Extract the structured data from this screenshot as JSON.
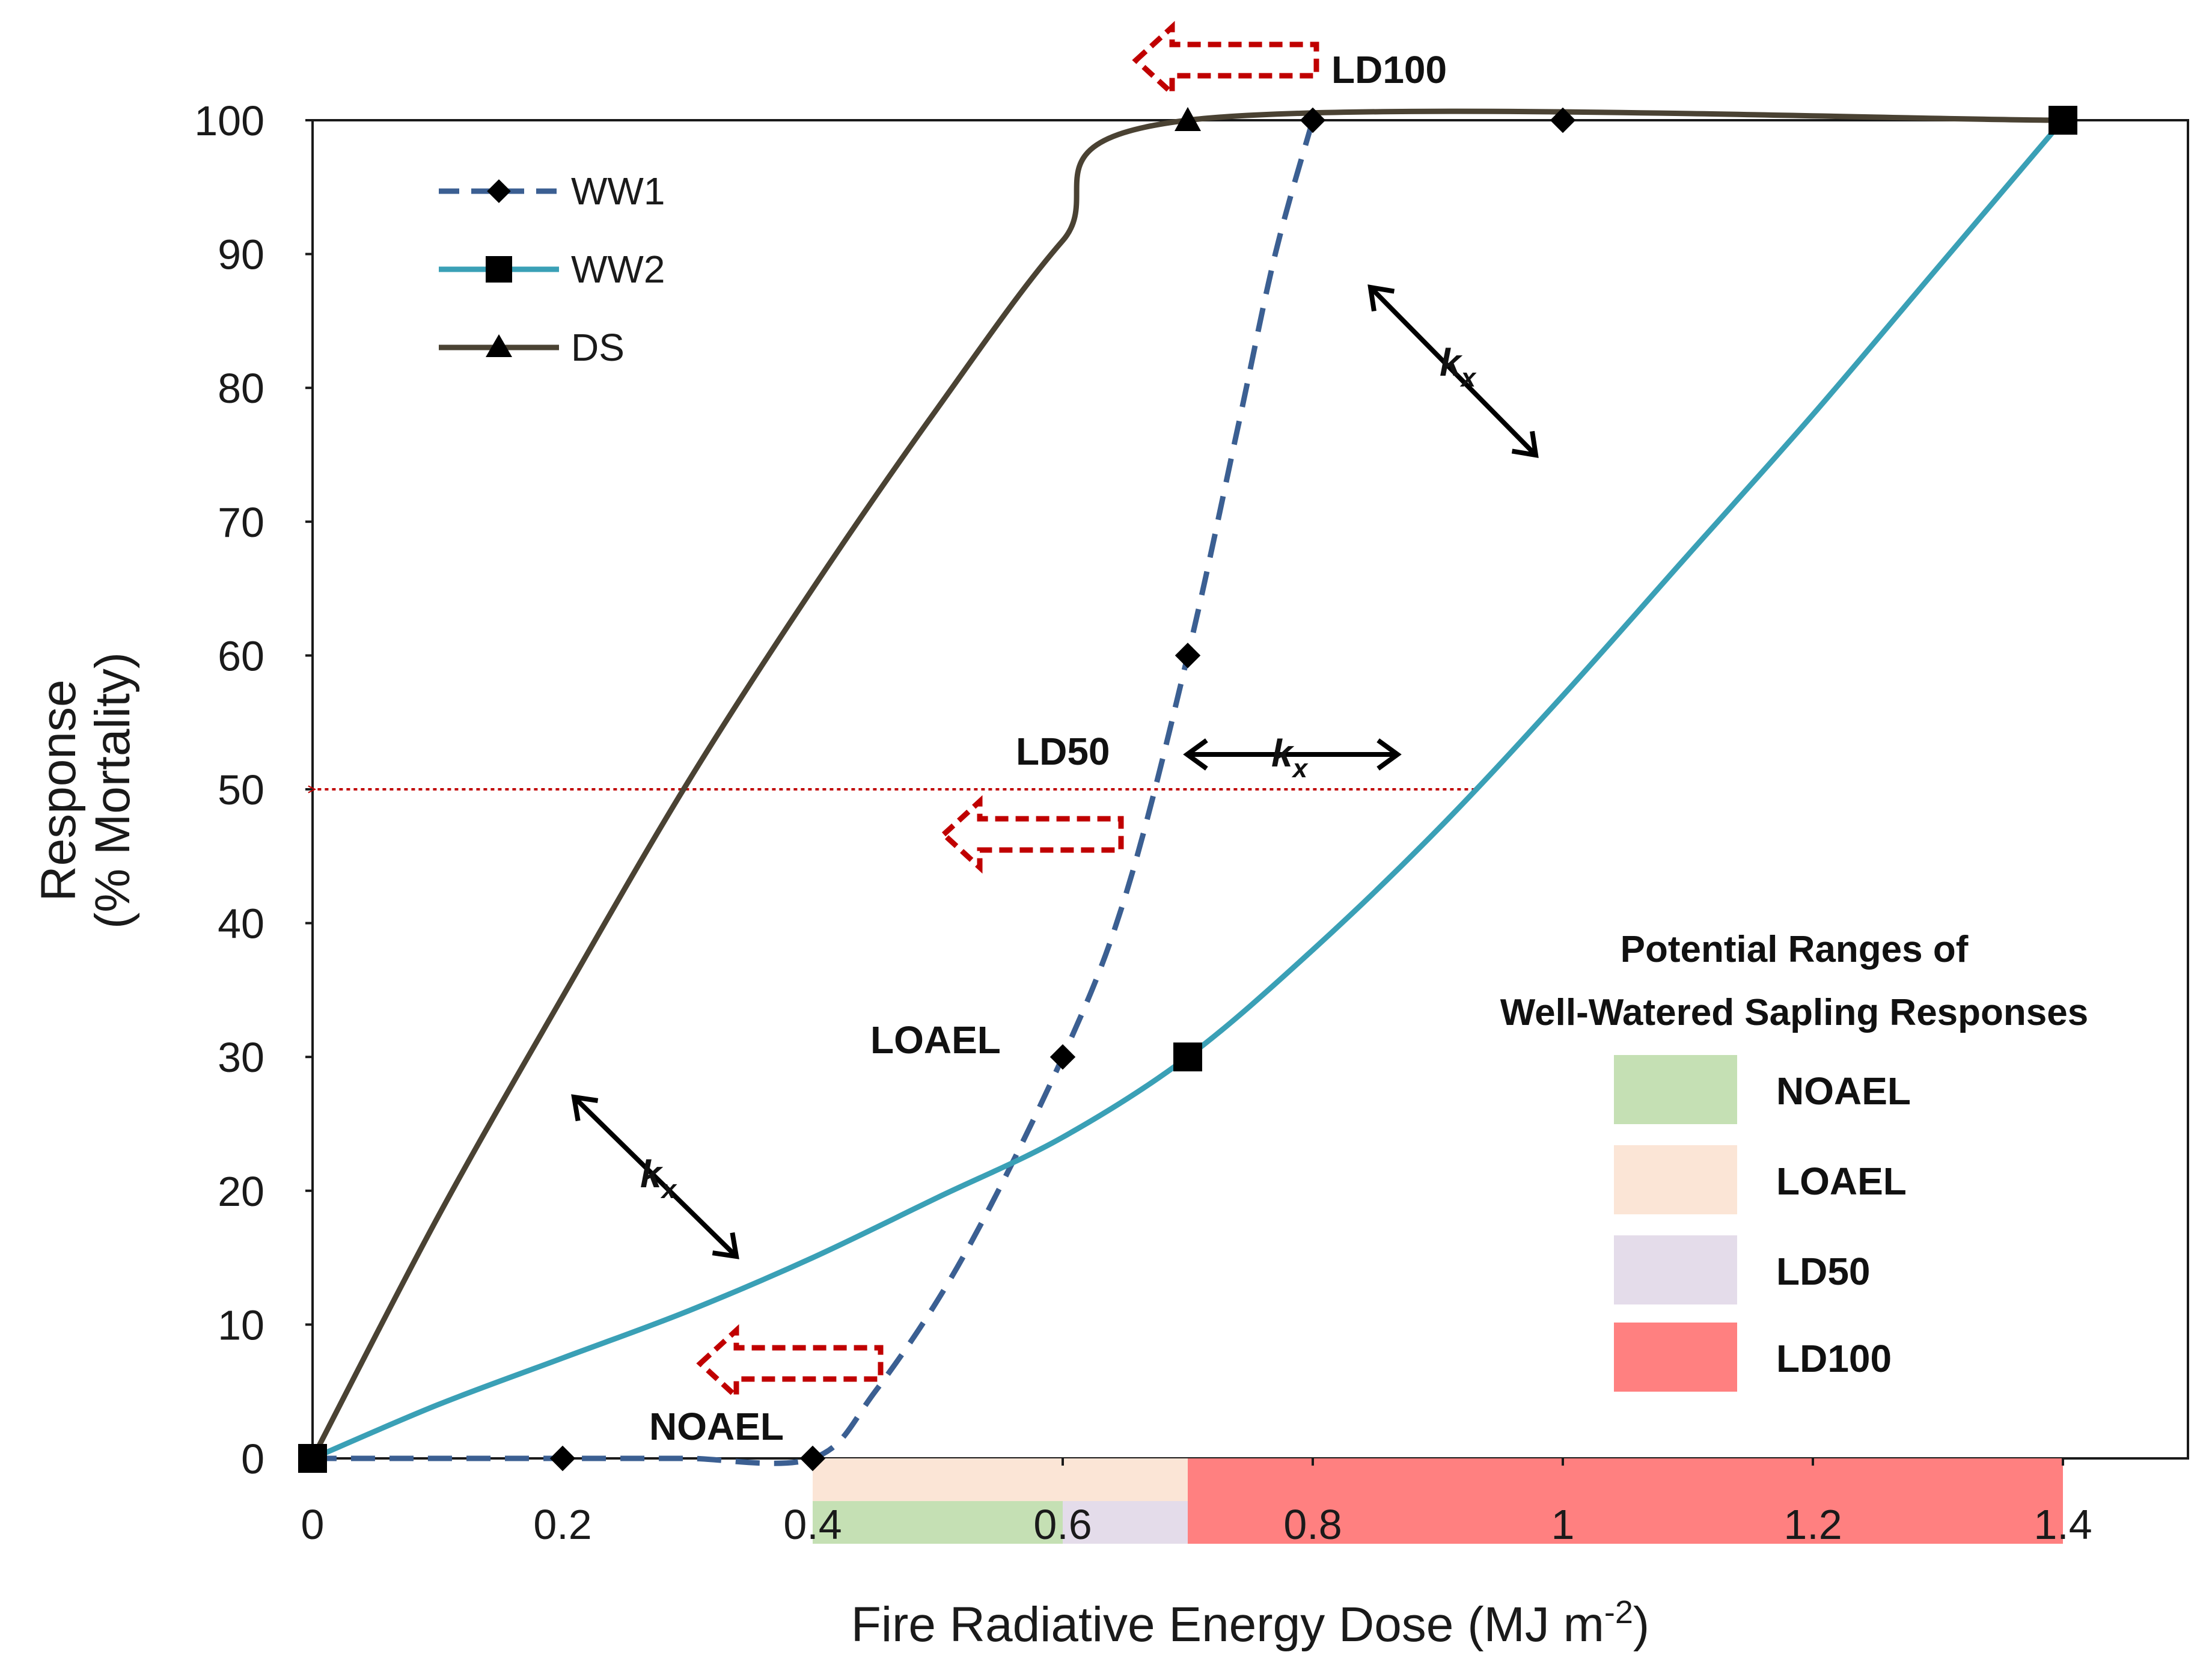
{
  "chart_data": {
    "type": "line",
    "xlabel": "Fire Radiative Energy Dose (MJ m",
    "xlabel_sup": "-2",
    "xlabel_end": ")",
    "ylabel_line1": "Response",
    "ylabel_line2": "(% Mortality)",
    "xlim": [
      0,
      1.5
    ],
    "ylim": [
      0,
      100
    ],
    "x_ticks": [
      "0",
      "0.2",
      "0.4",
      "0.6",
      "0.8",
      "1",
      "1.2",
      "1.4"
    ],
    "y_ticks": [
      "0",
      "10",
      "20",
      "30",
      "40",
      "50",
      "60",
      "70",
      "80",
      "90",
      "100"
    ],
    "series": [
      {
        "name": "WW1",
        "color": "#3b5f92",
        "style": "dashed",
        "marker": "diamond",
        "points": [
          [
            0,
            0
          ],
          [
            0.2,
            0
          ],
          [
            0.4,
            0
          ],
          [
            0.6,
            30
          ],
          [
            0.7,
            60
          ],
          [
            0.8,
            100
          ],
          [
            1.0,
            100
          ]
        ],
        "curve": [
          [
            0,
            0
          ],
          [
            0.24,
            0
          ],
          [
            0.3,
            0
          ],
          [
            0.4,
            0
          ],
          [
            0.45,
            5
          ],
          [
            0.52,
            15
          ],
          [
            0.6,
            30
          ],
          [
            0.65,
            42
          ],
          [
            0.7,
            60
          ],
          [
            0.74,
            77
          ],
          [
            0.77,
            90
          ],
          [
            0.8,
            100
          ]
        ]
      },
      {
        "name": "WW2",
        "color": "#3aa0b6",
        "style": "solid",
        "marker": "square",
        "points": [
          [
            0,
            0
          ],
          [
            0.7,
            30
          ],
          [
            1.4,
            100
          ]
        ],
        "curve": [
          [
            0,
            0
          ],
          [
            0.1,
            4
          ],
          [
            0.2,
            7.5
          ],
          [
            0.3,
            11
          ],
          [
            0.4,
            15
          ],
          [
            0.5,
            19.5
          ],
          [
            0.6,
            24
          ],
          [
            0.7,
            30
          ],
          [
            0.8,
            38
          ],
          [
            0.9,
            47
          ],
          [
            1.0,
            57
          ],
          [
            1.1,
            67.5
          ],
          [
            1.2,
            78
          ],
          [
            1.3,
            89
          ],
          [
            1.4,
            100
          ]
        ]
      },
      {
        "name": "DS",
        "color": "#4a4233",
        "style": "solid",
        "marker": "triangle",
        "points": [
          [
            0.7,
            100
          ]
        ],
        "curve": [
          [
            0,
            0
          ],
          [
            0.1,
            18
          ],
          [
            0.2,
            34.5
          ],
          [
            0.3,
            50.5
          ],
          [
            0.4,
            65
          ],
          [
            0.5,
            78.5
          ],
          [
            0.6,
            91
          ],
          [
            0.7,
            100
          ],
          [
            1.4,
            100
          ]
        ]
      }
    ],
    "legend": {
      "placement": "top-left",
      "entries": [
        "WW1",
        "WW2",
        "DS"
      ]
    },
    "shaded_ranges": [
      {
        "label": "LOAEL",
        "x": [
          0.4,
          0.7
        ],
        "band": "upper",
        "color": "#fbe5d6"
      },
      {
        "label": "NOAEL",
        "x": [
          0.4,
          0.6
        ],
        "band": "lower",
        "color": "#c5e0b4"
      },
      {
        "label": "LD50",
        "x": [
          0.6,
          0.7
        ],
        "band": "lower",
        "color": "#e4dcea"
      },
      {
        "label": "LD100",
        "x": [
          0.7,
          1.4
        ],
        "band": "both",
        "color": "#ff8080"
      }
    ],
    "annotations": {
      "ld100": "LD100",
      "ld50": "LD50",
      "loael": "LOAEL",
      "noael": "NOAEL",
      "kx_k": "k",
      "kx_sub": "x",
      "ld50_line_y": 50,
      "ld50_line_x_end": 0.93
    },
    "range_box": {
      "title_line1": "Potential Ranges of",
      "title_line2": "Well-Watered Sapling Responses",
      "items": [
        {
          "label": "NOAEL",
          "color": "#c5e0b4"
        },
        {
          "label": "LOAEL",
          "color": "#fbe5d6"
        },
        {
          "label": "LD50",
          "color": "#e4dcea"
        },
        {
          "label": "LD100",
          "color": "#ff8080"
        }
      ]
    },
    "grid": false
  }
}
